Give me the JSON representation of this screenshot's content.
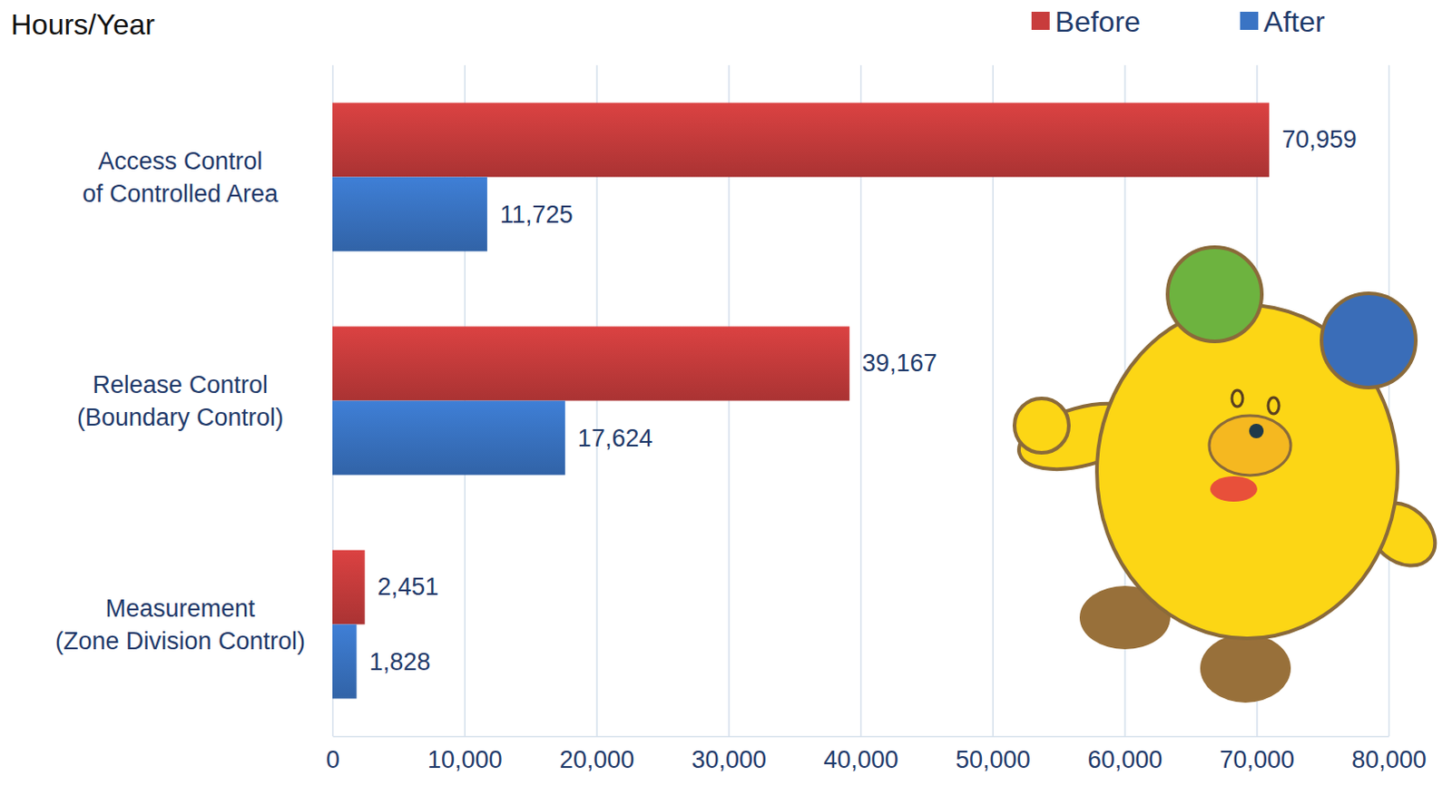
{
  "chart_data": {
    "type": "bar",
    "orientation": "horizontal",
    "title": "Hours/Year",
    "categories": [
      "Access Control\nof Controlled Area",
      "Release Control\n(Boundary Control)",
      "Measurement\n(Zone Division Control)"
    ],
    "series": [
      {
        "name": "Before",
        "color": "#c83c3c",
        "values": [
          70959,
          39167,
          2451
        ],
        "value_labels": [
          "70,959",
          "39,167",
          "2,451"
        ]
      },
      {
        "name": "After",
        "color": "#3a74c4",
        "values": [
          11725,
          17624,
          1828
        ],
        "value_labels": [
          "11,725",
          "17,624",
          "1,828"
        ]
      }
    ],
    "xlim": [
      0,
      80000
    ],
    "xticks": [
      0,
      {
        "value": 10000,
        "label": "10,000"
      },
      {
        "value": 20000,
        "label": "20,000"
      },
      {
        "value": 30000,
        "label": "30,000"
      },
      {
        "value": 40000,
        "label": "40,000"
      },
      {
        "value": 50000,
        "label": "50,000"
      },
      {
        "value": 60000,
        "label": "60,000"
      },
      {
        "value": 70000,
        "label": "70,000"
      },
      {
        "value": 80000,
        "label": "80,000"
      }
    ],
    "grid": true,
    "legend": "top-right",
    "data_labels": true
  }
}
